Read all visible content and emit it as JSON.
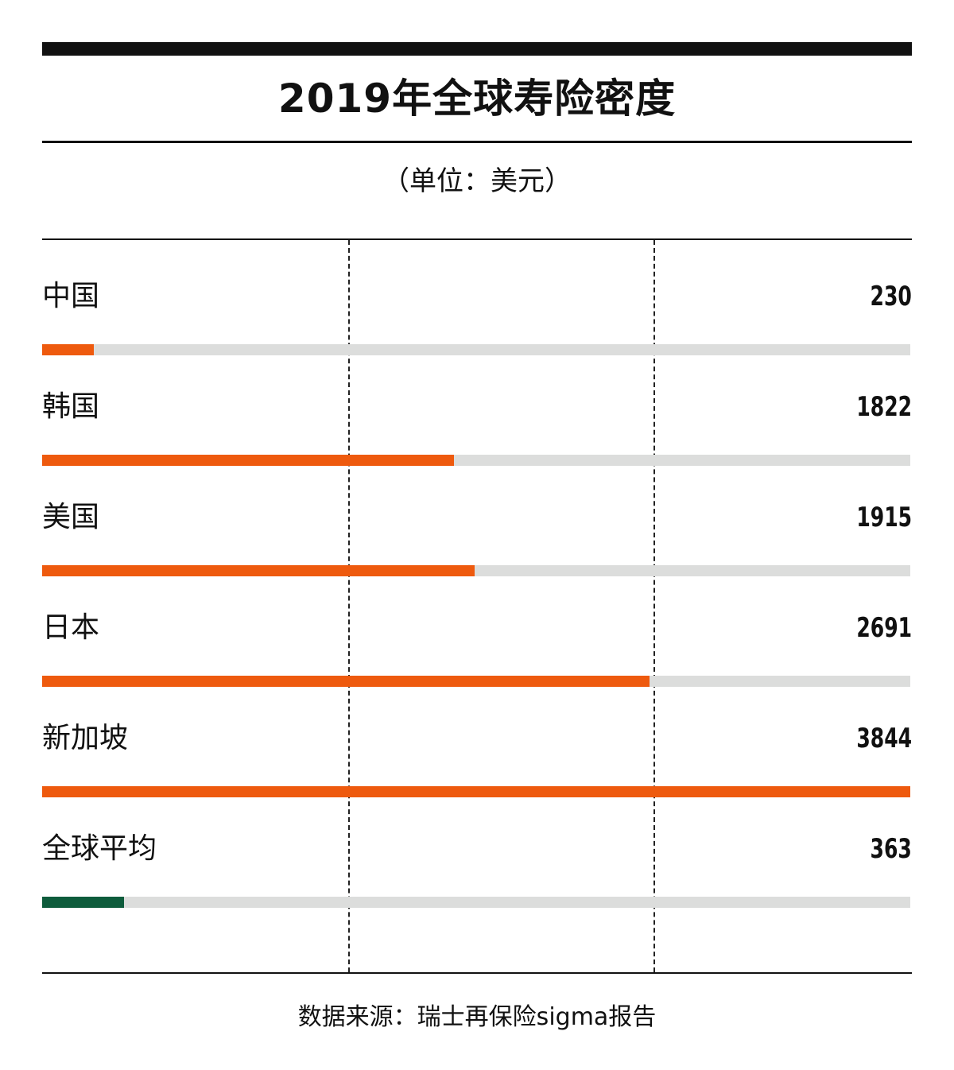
{
  "title": "2019年全球寿险密度",
  "unit": "（单位：美元）",
  "source": "数据来源：瑞士再保险sigma报告",
  "colors": {
    "highlight": "#ee5a0e",
    "average": "#0e5c3c",
    "track": "#dcdddc"
  },
  "chart_data": {
    "type": "bar",
    "orientation": "horizontal",
    "title": "2019年全球寿险密度",
    "unit": "（单位：美元）",
    "categories": [
      "中国",
      "韩国",
      "美国",
      "日本",
      "新加坡",
      "全球平均"
    ],
    "values": [
      230,
      1822,
      1915,
      2691,
      3844,
      363
    ],
    "xlim": [
      0,
      3844
    ],
    "grid": true
  }
}
